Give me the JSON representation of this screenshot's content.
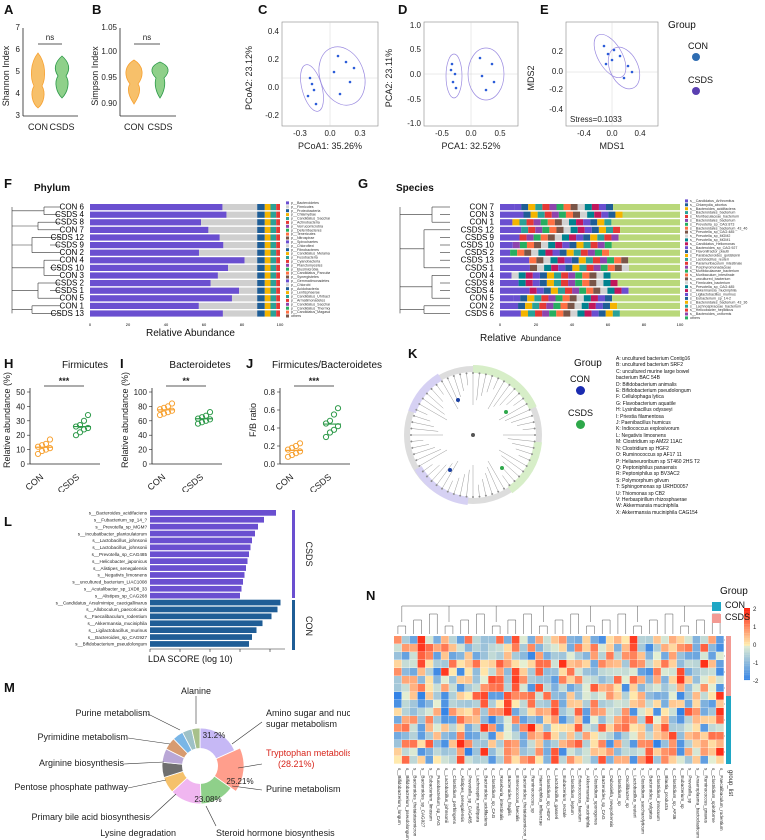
{
  "panels": {
    "A": "A",
    "B": "B",
    "C": "C",
    "D": "D",
    "E": "E",
    "F": "F",
    "G": "G",
    "H": "H",
    "I": "I",
    "J": "J",
    "K": "K",
    "L": "L",
    "M": "M",
    "N": "N"
  },
  "colors": {
    "con": "#f7a233",
    "csds": "#2e9a4a",
    "purple": "#6a4fd0",
    "blue": "#1f5d96",
    "green": "#b9d87a",
    "grey": "#d2d2d2"
  },
  "A": {
    "ylabel": "Shannon Index",
    "ns": "ns",
    "ticks": [
      "3",
      "4",
      "5",
      "6",
      "7"
    ],
    "groups": [
      "CON",
      "CSDS"
    ]
  },
  "B": {
    "ylabel": "Simpson Index",
    "ns": "ns",
    "ticks": [
      "0.90",
      "0.95",
      "1.00",
      "1.05"
    ],
    "groups": [
      "CON",
      "CSDS"
    ]
  },
  "C": {
    "xlabel": "PCoA1: 35.26%",
    "ylabel": "PCoA2: 23.12%",
    "xticks": [
      "-0.3",
      "0.0",
      "0.3"
    ],
    "yticks": [
      "-0.2",
      "0.0",
      "0.2",
      "0.4"
    ]
  },
  "D": {
    "xlabel": "PCA1: 32.52%",
    "ylabel": "PCA2: 23.11%",
    "xticks": [
      "-0.5",
      "0.0",
      "0.5"
    ],
    "yticks": [
      "-1.0",
      "-0.5",
      "0.0",
      "0.5",
      "1.0"
    ]
  },
  "E": {
    "xlabel": "MDS1",
    "ylabel": "MDS2",
    "xticks": [
      "-0.4",
      "0.0",
      "0.4"
    ],
    "yticks": [
      "-0.4",
      "-0.2",
      "0.0",
      "0.2"
    ],
    "stress": "Stress=0.1033"
  },
  "group_legend": {
    "title": "Group",
    "items": [
      "CON",
      "CSDS"
    ]
  },
  "F": {
    "title": "Phylum",
    "xlabel": "Relative Abundance",
    "samples": [
      "CON 6",
      "CSDS 4",
      "CSDS 8",
      "CON 7",
      "CSDS 12",
      "CSDS 9",
      "CON 2",
      "CON 4",
      "CSDS 10",
      "CON 3",
      "CSDS 2",
      "CSDS 1",
      "CON 5",
      "CON 1",
      "CSDS 13"
    ],
    "xticks": [
      "0",
      "20",
      "40",
      "60",
      "80",
      "100"
    ],
    "legend": [
      "p__Bacteroidetes",
      "p__Firmicutes",
      "p__Proteobacteria",
      "p__Chlamydiae",
      "p__Candidatus_Saccharibacteria",
      "p__Actinobacteria",
      "p__Verrucomicrobia",
      "p__Deferribacteres",
      "p__Tenericutes",
      "p__Nitrospirae",
      "p__Spirochaetes",
      "p__Chloroflexi",
      "p__Fibrobacteres",
      "p__Candidatus_Melainabacteria",
      "p__Fusobacteria",
      "p__Cyanobacteria",
      "p__Planctomycetes",
      "p__Elusimicrobia",
      "p__Candidatus_Parcubacteria",
      "p__Synergistetes",
      "p__Gemmatimonadetes",
      "p__Chlorobi",
      "p__Acidobacteria",
      "p__Lentisphaerae",
      "p__Candidatus_Uhrbacteria",
      "p__Armatimonadetes",
      "p__Candidatus_Saccharibacteria",
      "p__Candidatus_Thermoplasmatota",
      "p__Candidatus_Magasanikbacteria",
      "others"
    ]
  },
  "G": {
    "title": "Species",
    "xlabel_main": "Relative",
    "xlabel_sub": "Abundance",
    "samples": [
      "CON 7",
      "CON 3",
      "CON 1",
      "CSDS 12",
      "CSDS 9",
      "CSDS 10",
      "CSDS 2",
      "CSDS 13",
      "CSDS 1",
      "CON 4",
      "CSDS 8",
      "CSDS 4",
      "CON 5",
      "CON 2",
      "CSDS 6"
    ],
    "xticks": [
      "0",
      "20",
      "40",
      "60",
      "80",
      "100"
    ],
    "legend": [
      "s__Candidatus_Arthromitus",
      "s__Chlamydia_abortus",
      "s__Bacteroides_acidifaciens",
      "s__Bacteroidales_bacterium",
      "s__Muribaculaceae_bacterium",
      "s__Bacteroidales_bacterium",
      "s__Prevotella_sp_CAG:873",
      "s__Bacteroidales_bacterium_43_46",
      "s__Prevotella_sp_CAG:485",
      "s__Prevotella_sp_MGM2",
      "s__Prevotella_sp_MGM1",
      "s__Candidatus_Heliomonas",
      "s__Bacteroides_sp_CAG:927",
      "s__Flavonifractor_plautii",
      "s__Parabacteroides_goldsteinii",
      "s__Lactobacillus_reuteri",
      "s__Paramuribaculum_intestinale",
      "s__Porphyromonadaceae",
      "s__Muribaculaceae_bacterium",
      "s__Muribaculum_intestinale",
      "s__uncultured_bacterium",
      "s__Firmicutes_bacterium",
      "s__Prevotella_sp_CAG:485",
      "s__Akkermansia_muciniphila",
      "s__Ligilactobacillus_murinus",
      "s__Eubacterium_sp_14-2",
      "s__Bacteroidales_bacterium_43_36",
      "s__Lachnospiraceae_bacterium",
      "s__Helicobacter_hepaticus",
      "s__Bacteroides_uniformis",
      "others"
    ]
  },
  "H": {
    "title": "Firmicutes",
    "ylabel": "Relative abundance (%)",
    "sig": "***",
    "yticks": [
      "0",
      "10",
      "20",
      "30",
      "40",
      "50"
    ],
    "groups": [
      "CON",
      "CSDS"
    ],
    "points": {
      "CON": [
        7,
        9,
        10,
        11,
        12,
        13,
        14,
        17
      ],
      "CSDS": [
        20,
        22,
        24,
        25,
        26,
        27,
        30,
        34
      ]
    }
  },
  "I": {
    "title": "Bacteroidetes",
    "ylabel": "Relative abundance (%)",
    "sig": "**",
    "yticks": [
      "0",
      "20",
      "40",
      "60",
      "80",
      "100"
    ],
    "groups": [
      "CON",
      "CSDS"
    ],
    "points": {
      "CON": [
        68,
        70,
        72,
        74,
        76,
        78,
        80,
        84
      ],
      "CSDS": [
        56,
        58,
        60,
        62,
        63,
        65,
        67,
        72
      ]
    }
  },
  "J": {
    "title": "Firmicutes/Bacteroidetes",
    "ylabel": "F/B ratio",
    "sig": "***",
    "yticks": [
      "0.0",
      "0.2",
      "0.4",
      "0.6",
      "0.8"
    ],
    "groups": [
      "CON",
      "CSDS"
    ],
    "points": {
      "CON": [
        0.08,
        0.1,
        0.12,
        0.14,
        0.16,
        0.18,
        0.2,
        0.23
      ],
      "CSDS": [
        0.3,
        0.35,
        0.38,
        0.42,
        0.45,
        0.48,
        0.55,
        0.62
      ]
    }
  },
  "K": {
    "group_title": "Group",
    "groups": [
      "CON",
      "CSDS"
    ],
    "list": [
      "A: uncultured bacterium Contig16",
      "B: uncultured bacterium SRF2",
      "C: uncultured murine large bowel",
      "bacterium BAC 54B",
      "D: Bifidobacterium animalis",
      "E: Bifidobacterium pseudolongum",
      "F: Cellulophaga lytica",
      "G: Flavobacterium aquatile",
      "H: Lysinibacillus odysseyi",
      "I: Priestia filamentosa",
      "J: Paenibacillus humicus",
      "K: Indiococcus explosivorum",
      "L: Negativis limosnens",
      "M: Clostridium sp AM22 11AC",
      "N: Clostridium sp HGF2",
      "O: Ruminococcus sp AF17 11",
      "P: Helianeuroribum sp ST460 2HS T2",
      "Q: Peptoniphilus panaensis",
      "R: Peptoniphilus sp BV3AC2",
      "S: Polymorphum gilvum",
      "T: Sphingomonas sp URHD0057",
      "U: Thiomonas sp CB2",
      "V: Herbaspirillum rhizosphaerae",
      "W: Akkermansia muciniphila",
      "X: Akkermansia muciniphila CAG154"
    ]
  },
  "L": {
    "xlabel": "LDA SCORE (log 10)",
    "xticks": [
      "0",
      "1",
      "2",
      "3",
      "4"
    ],
    "group_csds": "CSDS",
    "group_con": "CON",
    "chart_data": {
      "type": "bar",
      "orientation": "horizontal",
      "categories": [
        "s__Bacteroides_acidifaciens",
        "s__Fubacterium_sp_14_?",
        "s__Prevotella_sp_MGM?",
        "s__Incubatibacter_plantoulatorum",
        "s__Lactobacillus_johnsonii",
        "s__Lactobacillus_johnsonii",
        "s__Prevotella_sp_CAG485",
        "s__Helicobacter_japonicus",
        "s__Alistipes_senegalensis",
        "s__Negativis_limosnens",
        "s__uncultured_bacterium_LIAC1008",
        "s__Acutalibacter_sp_1XD8_33",
        "s__Alistipes_sp_CAG268",
        "s__Candidatus_Arsulmimipe_caecigallinarus",
        "s__Alloboculum_paecoricanis",
        "s__Faecalibaculum_rodentium",
        "s__Akkermansia_muciniphila",
        "s__Ligilactobacillus_murinus",
        "s__Bacteroides_sp_CAG927",
        "s__Bifidobacterium_pseudolongum"
      ],
      "values": [
        4.2,
        3.8,
        3.6,
        3.5,
        3.4,
        3.35,
        3.3,
        3.25,
        3.2,
        3.15,
        3.1,
        3.05,
        3.0,
        4.35,
        4.25,
        4.05,
        3.75,
        3.55,
        3.4,
        3.3
      ],
      "groups": [
        "CSDS",
        "CSDS",
        "CSDS",
        "CSDS",
        "CSDS",
        "CSDS",
        "CSDS",
        "CSDS",
        "CSDS",
        "CSDS",
        "CSDS",
        "CSDS",
        "CSDS",
        "CON",
        "CON",
        "CON",
        "CON",
        "CON",
        "CON",
        "CON"
      ],
      "xlim": [
        0,
        4.5
      ]
    }
  },
  "M": {
    "chart_data": {
      "type": "pie",
      "labels": [
        "Amino sugar and nucleotide sugar metabolism",
        "Tryptophan metabolism",
        "Purine metabolism",
        "Steroid hormone biosynthesis",
        "Lysine degradation",
        "Primary bile acid biosynthesis",
        "Pentose phosphate pathway",
        "Arginine biosynthesis",
        "Pyrimidine metabolism",
        "Purine metabolism",
        "Alanine"
      ],
      "values": [
        31.2,
        28.21,
        25.21,
        23.08,
        12,
        11,
        10,
        9,
        8,
        7,
        6
      ],
      "value_labels": [
        "31.2%",
        "(28.21%)",
        "25.21%",
        "23.08%",
        "",
        "",
        "",
        "",
        "",
        "",
        ""
      ]
    },
    "labels": {
      "alanine": "Alanine",
      "purine_top": "Purine metabolism",
      "pyrimidine": "Pyrimidine metabolism",
      "arginine": "Arginine biosynthesis",
      "pentose": "Pentose phosphate pathway",
      "bile": "Primary bile acid biosynthesis",
      "lysine": "Lysine degradation",
      "amino": "Amino sugar and nucleotide",
      "amino2": "sugar metabolism",
      "trp": "Tryptophan metabolism",
      "trp_pct": "(28.21%)",
      "purine_right": "Purine metabolism",
      "steroid": "Steroid hormone biosynthesis"
    },
    "pcts": {
      "p1": "31.2%",
      "p2": "25.21%",
      "p3": "23.08%"
    }
  },
  "N": {
    "legend_title": "Group",
    "groups": [
      "CON",
      "CSDS"
    ],
    "scale": [
      "2",
      "1",
      "0",
      "-1",
      "-2"
    ],
    "group_label": "group_list",
    "species": [
      "s__Bifidobacterium_longum",
      "s__Bifidobacterium_pseudolongum",
      "s__Bacteroides_thetaiotaomicron",
      "s__Bacteroides_sp_CAG927",
      "s__Eubacterium_limosum",
      "s__Fusobacterium_sp_CAG",
      "s__Lactobacillus_johnsonii",
      "s__Clostridium_perfringens",
      "s__Alistipes_senegalensis",
      "s__Prevotella_sp_CAG485",
      "s__Lachnospira_multipara",
      "s__Bacteroides_acidifaciens",
      "s__Clostridium_sp_CAG",
      "s__Roseburia_intestinalis",
      "s__Bacteroides_fragilis",
      "s__Enterococcus_faecalis",
      "s__Bacteroides_thetaiotaomicron_CAG40",
      "s__Ruminococcus_sp",
      "s__Haemophilus_influenzae",
      "s__Clostridium_sp_HGF2",
      "s__Lactobacillus_gasseri",
      "s__Eubacterium_rectale",
      "s__Clostridium_leptum",
      "s__Enterococcus_faecium",
      "s__Akkermansia_muciniphila",
      "s__Clostridium_sporogenes",
      "s__Bacteroides_sp_CAG",
      "s__Dubosiella_newyorkensis",
      "s__Clostridium_sp",
      "s__Oscillibacter_sp",
      "s__Lactobacillus_reuteri",
      "s__Clostridium_saccharolyticum",
      "s__Bacteroides_vulgatus",
      "s__Clostridium_innocuum",
      "s__Blautia_producta",
      "s__Clostridium_sp_AF36",
      "s__Eubacterium_sp",
      "s__Prevotella_sp",
      "s__Anaeroplasma_bactoclasticum",
      "s__Ruminococcus_gnavus",
      "s__Clostridium_spiroforme",
      "s__Faecalibaculum_rodentium"
    ]
  }
}
